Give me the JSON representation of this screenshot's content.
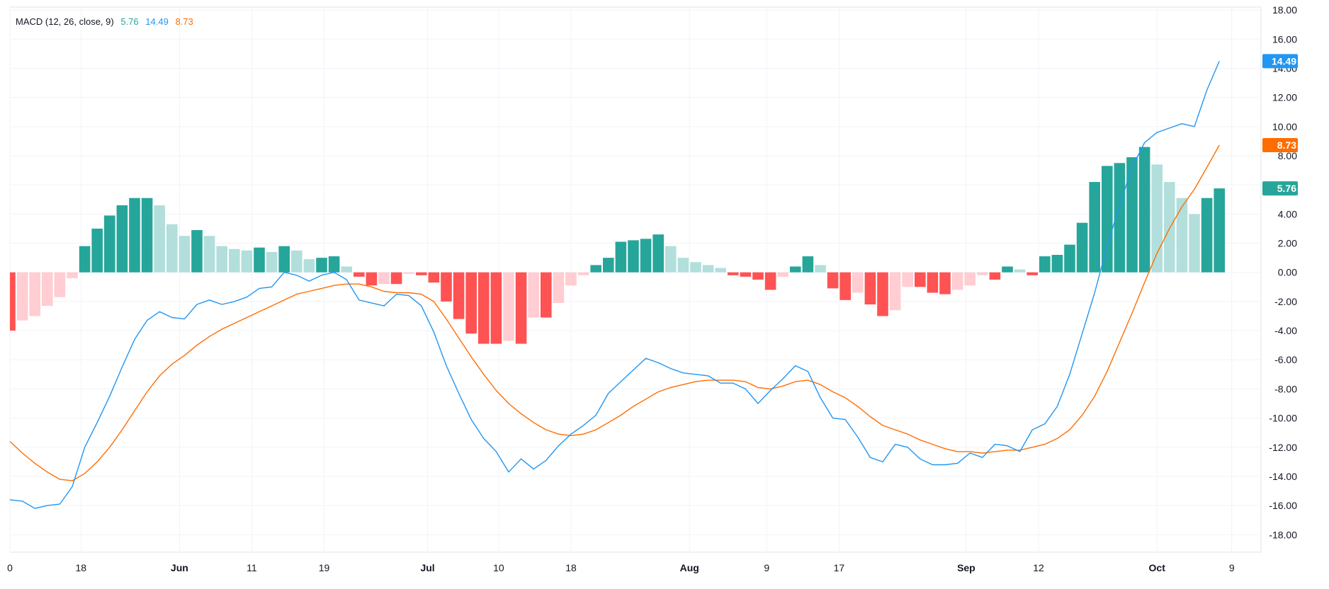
{
  "legend": {
    "label": "MACD (12, 26, close, 9)",
    "histogram_value": "5.76",
    "macd_value": "14.49",
    "signal_value": "8.73"
  },
  "colors": {
    "macd_line": "#2196f3",
    "signal_line": "#ff6d00",
    "hist_pos_strong": "#26a69a",
    "hist_pos_weak": "#b2dfdb",
    "hist_neg_strong": "#ff5252",
    "hist_neg_weak": "#ffcdd2",
    "grid": "#f0f3fa"
  },
  "price_tags": [
    {
      "label": "14.49",
      "value": 14.49,
      "color": "#2196f3"
    },
    {
      "label": "8.73",
      "value": 8.73,
      "color": "#ff6d00"
    },
    {
      "label": "5.76",
      "value": 5.76,
      "color": "#26a69a"
    }
  ],
  "chart_data": {
    "type": "line",
    "title": "MACD (12, 26, close, 9)",
    "ylim": [
      -19.2,
      18.2
    ],
    "y_ticks": [
      "18.00",
      "16.00",
      "14.00",
      "12.00",
      "10.00",
      "8.00",
      "6.00",
      "4.00",
      "2.00",
      "0.00",
      "-2.00",
      "-4.00",
      "-6.00",
      "-8.00",
      "-10.00",
      "-12.00",
      "-14.00",
      "-16.00",
      "-18.00"
    ],
    "x_labels": [
      {
        "label": "0",
        "index": 0
      },
      {
        "label": "18",
        "index": 5.7
      },
      {
        "label": "Jun",
        "index": 13.6
      },
      {
        "label": "11",
        "index": 19.4
      },
      {
        "label": "19",
        "index": 25.2
      },
      {
        "label": "Jul",
        "index": 33.5
      },
      {
        "label": "10",
        "index": 39.2
      },
      {
        "label": "18",
        "index": 45.0
      },
      {
        "label": "Aug",
        "index": 54.5
      },
      {
        "label": "9",
        "index": 60.7
      },
      {
        "label": "17",
        "index": 66.5
      },
      {
        "label": "Sep",
        "index": 76.7
      },
      {
        "label": "12",
        "index": 82.5
      },
      {
        "label": "Oct",
        "index": 92.0
      },
      {
        "label": "9",
        "index": 98.0
      }
    ],
    "series": [
      {
        "name": "MACD",
        "values": [
          -15.6,
          -15.7,
          -16.2,
          -16.0,
          -15.9,
          -14.7,
          -12.0,
          -10.3,
          -8.5,
          -6.5,
          -4.6,
          -3.3,
          -2.7,
          -3.1,
          -3.2,
          -2.2,
          -1.9,
          -2.2,
          -2.0,
          -1.7,
          -1.1,
          -1.0,
          0.0,
          -0.2,
          -0.6,
          -0.2,
          0.0,
          -0.5,
          -1.9,
          -2.1,
          -2.3,
          -1.5,
          -1.6,
          -2.3,
          -4.1,
          -6.4,
          -8.3,
          -10.1,
          -11.4,
          -12.3,
          -13.7,
          -12.8,
          -13.5,
          -12.9,
          -11.9,
          -11.1,
          -10.5,
          -9.8,
          -8.3,
          -7.5,
          -6.7,
          -5.9,
          -6.2,
          -6.6,
          -6.9,
          -7.0,
          -7.1,
          -7.6,
          -7.6,
          -8.0,
          -9.0,
          -8.1,
          -7.3,
          -6.4,
          -6.8,
          -8.6,
          -10.0,
          -10.1,
          -11.3,
          -12.7,
          -13.0,
          -11.8,
          -12.0,
          -12.8,
          -13.2,
          -13.2,
          -13.1,
          -12.4,
          -12.7,
          -11.8,
          -11.9,
          -12.3,
          -10.8,
          -10.4,
          -9.2,
          -7.0,
          -4.2,
          -1.4,
          1.8,
          4.6,
          7.2,
          8.9,
          9.6,
          9.9,
          10.2,
          10.0,
          12.5,
          14.49
        ]
      },
      {
        "name": "Signal",
        "values": [
          -11.6,
          -12.4,
          -13.1,
          -13.7,
          -14.2,
          -14.3,
          -13.8,
          -13.0,
          -12.0,
          -10.8,
          -9.5,
          -8.2,
          -7.1,
          -6.3,
          -5.7,
          -5.0,
          -4.4,
          -3.9,
          -3.5,
          -3.1,
          -2.7,
          -2.3,
          -1.9,
          -1.5,
          -1.3,
          -1.1,
          -0.9,
          -0.8,
          -0.8,
          -1.0,
          -1.3,
          -1.4,
          -1.4,
          -1.5,
          -2.0,
          -3.2,
          -4.5,
          -5.8,
          -7.0,
          -8.1,
          -9.0,
          -9.7,
          -10.3,
          -10.8,
          -11.1,
          -11.2,
          -11.1,
          -10.8,
          -10.3,
          -9.8,
          -9.2,
          -8.7,
          -8.2,
          -7.9,
          -7.7,
          -7.5,
          -7.4,
          -7.4,
          -7.4,
          -7.5,
          -7.9,
          -8.0,
          -7.8,
          -7.5,
          -7.4,
          -7.7,
          -8.2,
          -8.6,
          -9.2,
          -9.9,
          -10.5,
          -10.8,
          -11.1,
          -11.5,
          -11.8,
          -12.1,
          -12.3,
          -12.3,
          -12.4,
          -12.3,
          -12.2,
          -12.2,
          -12.0,
          -11.8,
          -11.4,
          -10.8,
          -9.8,
          -8.5,
          -6.8,
          -4.8,
          -2.8,
          -0.7,
          1.3,
          3.0,
          4.5,
          5.7,
          7.2,
          8.73
        ]
      },
      {
        "name": "Histogram",
        "values": [
          -4.0,
          -3.3,
          -3.0,
          -2.3,
          -1.7,
          -0.4,
          1.8,
          3.0,
          3.9,
          4.6,
          5.1,
          5.1,
          4.6,
          3.3,
          2.5,
          2.9,
          2.5,
          1.8,
          1.6,
          1.5,
          1.7,
          1.4,
          1.8,
          1.5,
          0.9,
          1.0,
          1.1,
          0.4,
          -0.3,
          -0.9,
          -0.8,
          -0.8,
          -0.1,
          -0.2,
          -0.7,
          -2.0,
          -3.2,
          -4.2,
          -4.9,
          -4.9,
          -4.7,
          -4.9,
          -3.1,
          -3.1,
          -2.1,
          -0.9,
          -0.2,
          0.5,
          1.0,
          2.1,
          2.2,
          2.3,
          2.6,
          1.8,
          1.0,
          0.7,
          0.5,
          0.3,
          -0.2,
          -0.3,
          -0.5,
          -1.2,
          -0.3,
          0.4,
          1.1,
          0.5,
          -1.1,
          -1.9,
          -1.4,
          -2.2,
          -3.0,
          -2.6,
          -1.0,
          -1.0,
          -1.4,
          -1.5,
          -1.2,
          -0.9,
          -0.2,
          -0.5,
          0.4,
          0.2,
          -0.2,
          1.1,
          1.2,
          1.9,
          3.4,
          6.2,
          7.3,
          7.5,
          7.9,
          8.6,
          7.4,
          6.2,
          5.1,
          4.0,
          5.1,
          5.76
        ]
      }
    ]
  }
}
